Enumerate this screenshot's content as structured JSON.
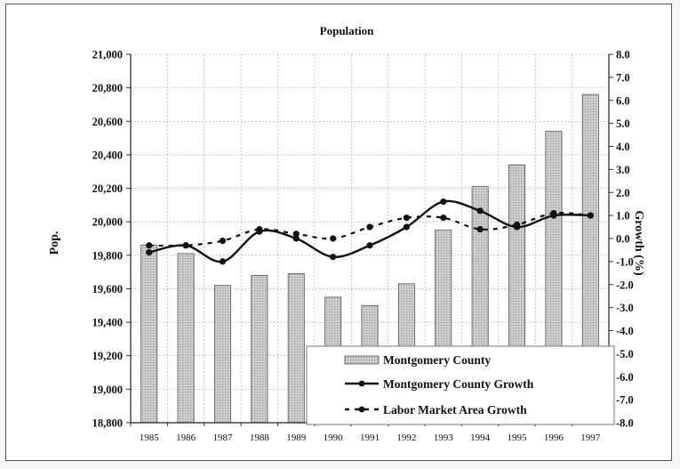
{
  "chart_data": {
    "type": "bar",
    "title": "Population",
    "xlabel": "",
    "ylabel": "Pop.",
    "y2label": "Growth (%)",
    "categories": [
      "1985",
      "1986",
      "1987",
      "1988",
      "1989",
      "1990",
      "1991",
      "1992",
      "1993",
      "1994",
      "1995",
      "1996",
      "1997"
    ],
    "ylim": [
      18800,
      21000
    ],
    "y2lim": [
      -8.0,
      8.0
    ],
    "yticks": [
      "18,800",
      "19,000",
      "19,200",
      "19,400",
      "19,600",
      "19,800",
      "20,000",
      "20,200",
      "20,400",
      "20,600",
      "20,800",
      "21,000"
    ],
    "y2ticks": [
      "-8.0",
      "-7.0",
      "-6.0",
      "-5.0",
      "-4.0",
      "-3.0",
      "-2.0",
      "-1.0",
      "0.0",
      "1.0",
      "2.0",
      "3.0",
      "4.0",
      "5.0",
      "6.0",
      "7.0",
      "8.0"
    ],
    "grid": true,
    "legend_position": "bottom-right",
    "series": [
      {
        "name": "Montgomery County",
        "type": "bar",
        "axis": "left",
        "values": [
          19860,
          19810,
          19620,
          19680,
          19690,
          19550,
          19500,
          19630,
          19950,
          20210,
          20340,
          20540,
          20760
        ]
      },
      {
        "name": "Montgomery County Growth",
        "type": "line",
        "axis": "right",
        "style": "solid",
        "values": [
          -0.6,
          -0.3,
          -1.0,
          0.3,
          0.0,
          -0.8,
          -0.3,
          0.5,
          1.6,
          1.2,
          0.5,
          1.0,
          1.0
        ]
      },
      {
        "name": "Labor Market Area Growth",
        "type": "line",
        "axis": "right",
        "style": "dashed",
        "values": [
          -0.3,
          -0.3,
          -0.1,
          0.4,
          0.2,
          0.0,
          0.5,
          0.9,
          0.9,
          0.4,
          0.6,
          1.1,
          1.0
        ]
      }
    ]
  }
}
